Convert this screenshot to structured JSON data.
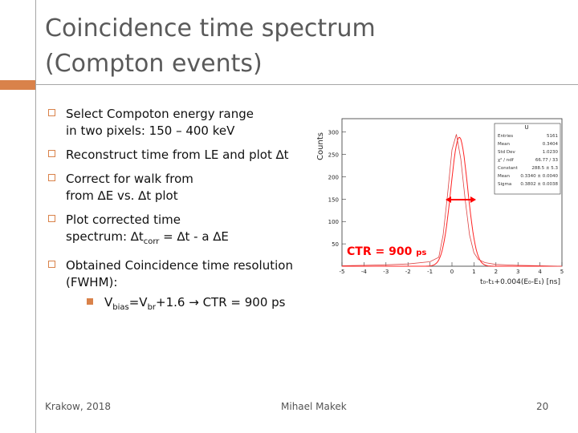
{
  "title": {
    "line1": "Coincidence time spectrum",
    "line2": "(Compton events)"
  },
  "bullets": [
    {
      "text_a": "Select Compoton energy range",
      "text_b": "in two pixels: 150 – 400 keV"
    },
    {
      "text_a": "Reconstruct time from LE and plot ∆t"
    },
    {
      "text_a": "Correct for walk from",
      "text_b": "from ∆E vs. ∆t plot"
    },
    {
      "text_a": "Plot corrected time",
      "text_b_pre": "spectrum: ∆t",
      "text_b_sub": "corr",
      "text_b_post": " = ∆t - a ∆E"
    },
    {
      "text_a": "Obtained Coincidence time resolution",
      "text_b": "(FWHM):"
    }
  ],
  "subbullet": {
    "pre": "V",
    "sub1": "bias",
    "mid": "=V",
    "sub2": "br",
    "post": "+1.6 → CTR = 900 ps"
  },
  "plot": {
    "ylabel": "Counts",
    "yticks": [
      "300",
      "250",
      "200",
      "150",
      "100",
      "50"
    ],
    "xticks": [
      "-5",
      "-4",
      "-3",
      "-2",
      "-1",
      "0",
      "1",
      "2",
      "3",
      "4",
      "5"
    ],
    "xlabel": "t₀-t₁+0.004(E₀-E₁)  [ns]",
    "histname": "U",
    "stats": [
      {
        "k": "Entries",
        "v": "5161"
      },
      {
        "k": "Mean",
        "v": "0.3404"
      },
      {
        "k": "Std Dev",
        "v": "1.0230"
      },
      {
        "k": "χ² / ndf",
        "v": "66.77 / 33"
      },
      {
        "k": "Constant",
        "v": "288.5 ± 5.3"
      },
      {
        "k": "Mean",
        "v": "0.3340 ± 0.0040"
      },
      {
        "k": "Sigma",
        "v": "0.3802 ± 0.0038"
      }
    ]
  },
  "chart_data": {
    "type": "line",
    "title": "",
    "xlabel": "t₀-t₁+0.004(E₀-E₁) [ns]",
    "ylabel": "Counts",
    "xlim": [
      -5,
      5
    ],
    "ylim": [
      0,
      330
    ],
    "series": [
      {
        "name": "histogram",
        "x": [
          -5,
          -4,
          -3,
          -2,
          -1,
          -0.6,
          -0.4,
          -0.2,
          0,
          0.2,
          0.4,
          0.6,
          0.8,
          1,
          1.2,
          1.5,
          2,
          3,
          4,
          5
        ],
        "values": [
          1,
          2,
          3,
          5,
          10,
          20,
          70,
          160,
          260,
          295,
          240,
          150,
          70,
          30,
          15,
          8,
          4,
          2,
          1,
          0
        ]
      },
      {
        "name": "gaussian fit",
        "constant": 288.5,
        "mean": 0.334,
        "sigma": 0.3802
      }
    ]
  },
  "ctr_label": {
    "main": "CTR = 900",
    "unit": "ps"
  },
  "footer": {
    "left": "Krakow, 2018",
    "center": "Mihael Makek",
    "page": "20"
  },
  "colors": {
    "accent": "#d9824a",
    "red": "#ff0000"
  }
}
